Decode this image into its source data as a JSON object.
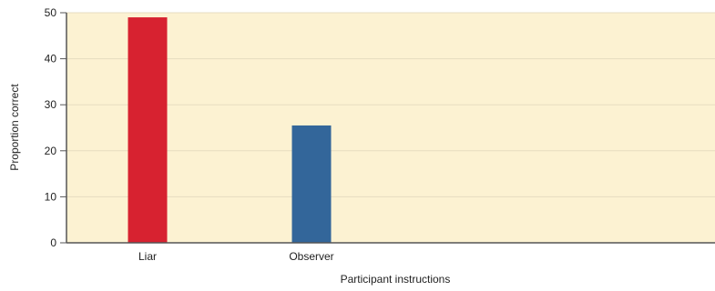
{
  "chart_data": {
    "type": "bar",
    "title": "",
    "xlabel": "Participant instructions",
    "ylabel": "Proportion correct",
    "categories": [
      "Liar",
      "Observer"
    ],
    "values": [
      49,
      25.5
    ],
    "ylim": [
      0,
      50
    ],
    "yticks": [
      0,
      10,
      20,
      30,
      40,
      50
    ],
    "grid": true,
    "colors": {
      "plot_background": "#fcf2d2",
      "gridline": "#e6dcc0",
      "axis": "#555555",
      "bars": [
        "#d72230",
        "#33669a"
      ]
    }
  }
}
